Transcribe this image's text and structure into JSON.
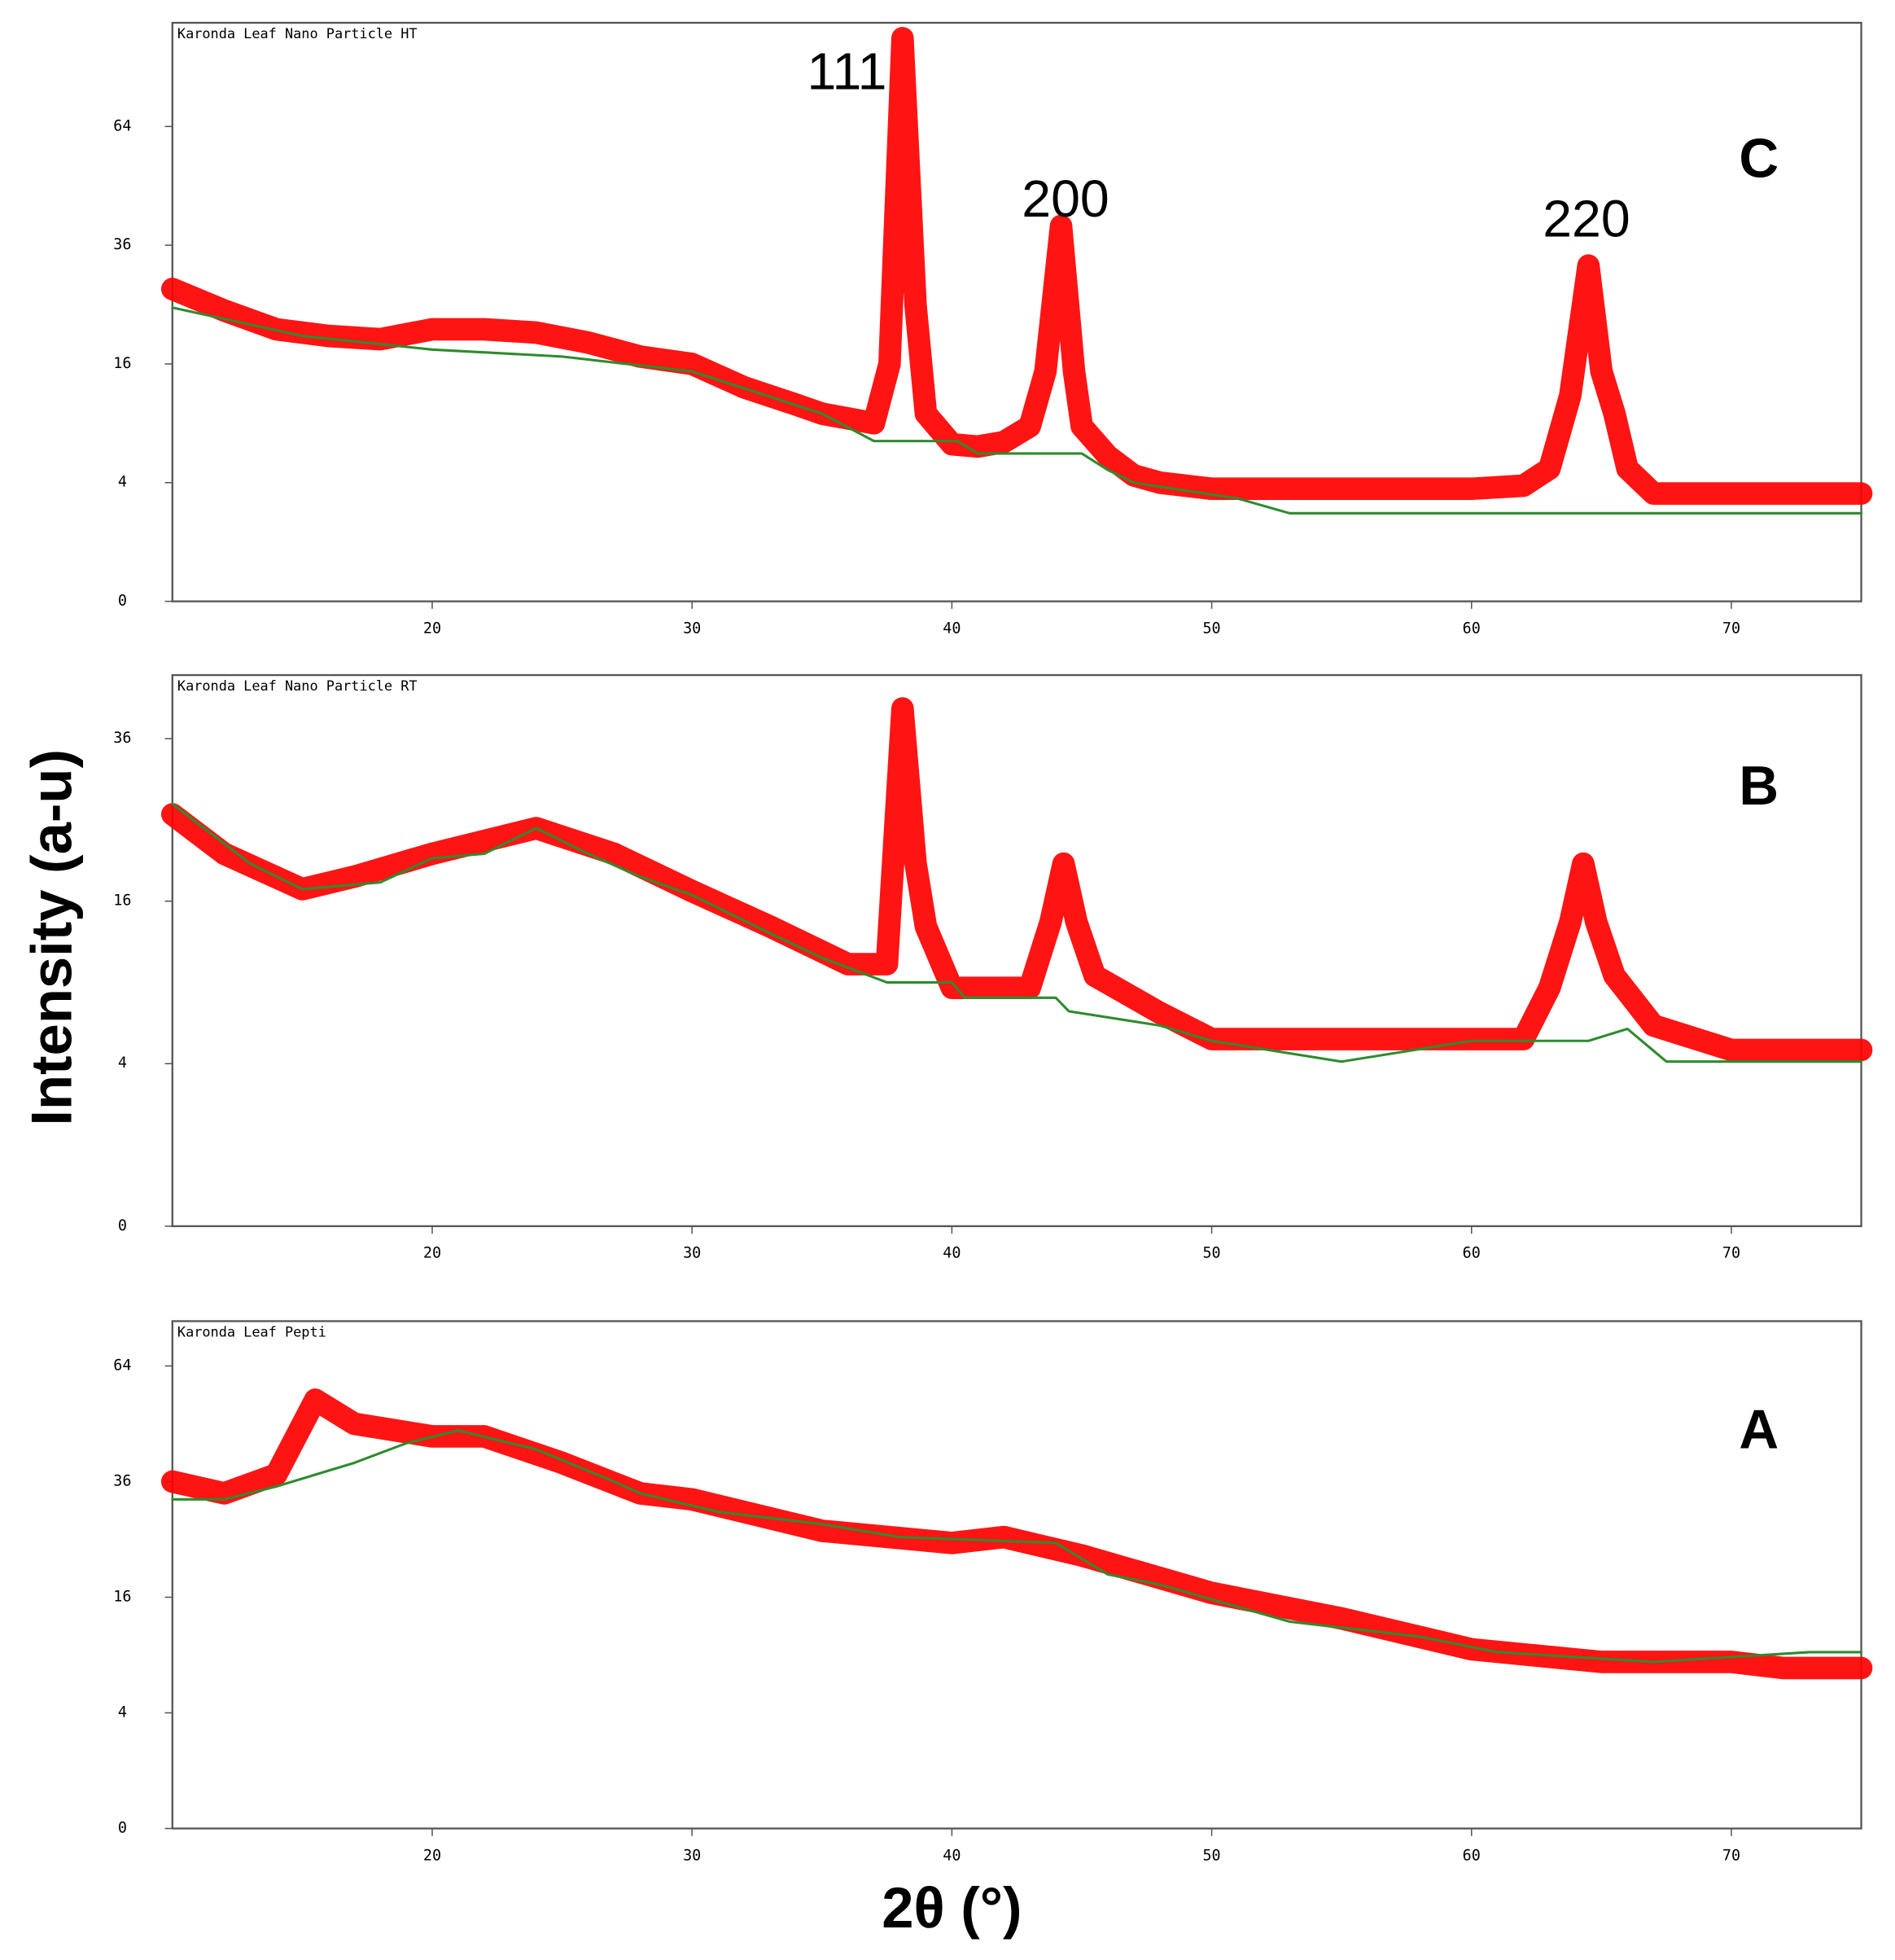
{
  "y_label": "Intensity  (a-u)",
  "x_label": "2θ (°)",
  "chart_data": [
    {
      "type": "line",
      "title": "Karonda Leaf Nano Particle HT",
      "panel_label": "C",
      "yscale": "sqrt",
      "xlim": [
        10,
        75
      ],
      "xticks": [
        20,
        30,
        40,
        50,
        60,
        70
      ],
      "ylim": [
        0,
        95
      ],
      "yticks": [
        0,
        4,
        16,
        36,
        64
      ],
      "annotations": [
        "111",
        "200",
        "220"
      ],
      "series": [
        {
          "color": "#ff0000",
          "x": [
            10,
            12,
            14,
            16,
            18,
            20,
            22,
            24,
            26,
            28,
            30,
            32,
            34,
            35,
            36,
            37,
            37.6,
            38.1,
            38.6,
            39,
            40,
            41,
            42,
            43,
            43.6,
            44.2,
            44.7,
            45,
            46,
            47,
            48,
            50,
            52,
            54,
            56,
            58,
            60,
            62,
            63,
            63.8,
            64.5,
            65,
            65.5,
            66,
            67,
            69,
            71,
            73,
            75
          ],
          "values": [
            27.7,
            24,
            21,
            20,
            19.5,
            21,
            21,
            20.5,
            19,
            17,
            16,
            13,
            11,
            10,
            9.5,
            9,
            16,
            90,
            25,
            10,
            7,
            6.8,
            7.2,
            8.7,
            15,
            40,
            15,
            8.7,
            6,
            4.5,
            4,
            3.6,
            3.6,
            3.6,
            3.6,
            3.6,
            3.6,
            3.8,
            5,
            12,
            32,
            15,
            10,
            5,
            3.3,
            3.3,
            3.3,
            3.3,
            3.3
          ]
        },
        {
          "color": "#2e8b2e",
          "x": [
            10,
            15,
            20,
            25,
            30,
            35,
            37,
            40.2,
            41,
            45,
            46,
            47,
            51,
            53,
            75
          ],
          "values": [
            24.5,
            20,
            18,
            17,
            15,
            10,
            7.3,
            7.3,
            6.2,
            6.2,
            4.9,
            4,
            3,
            2.2,
            2.2
          ]
        }
      ]
    },
    {
      "type": "line",
      "title": "Karonda Leaf Nano Particle RT",
      "panel_label": "B",
      "yscale": "sqrt",
      "xlim": [
        10,
        75
      ],
      "xticks": [
        20,
        30,
        40,
        50,
        60,
        70
      ],
      "ylim": [
        0,
        46
      ],
      "yticks": [
        0,
        4,
        16,
        36
      ],
      "series": [
        {
          "color": "#ff0000",
          "x": [
            10,
            12,
            15,
            17,
            20,
            24,
            27,
            30,
            33,
            36,
            37.5,
            38.1,
            38.6,
            39,
            40,
            43,
            43.8,
            44.3,
            44.8,
            45.5,
            48,
            50,
            54,
            58,
            62,
            63,
            63.8,
            64.3,
            64.8,
            65.5,
            67,
            70,
            75
          ],
          "values": [
            25.7,
            21,
            17.2,
            18.5,
            21,
            24,
            21,
            17,
            13.6,
            10.4,
            10.4,
            40.6,
            20,
            13.6,
            8.6,
            8.6,
            14,
            19.9,
            14,
            9.5,
            6.9,
            5.3,
            5.3,
            5.3,
            5.3,
            8.6,
            14,
            19.9,
            14,
            9.5,
            6.1,
            4.7,
            4.7
          ]
        },
        {
          "color": "#2e8b2e",
          "x": [
            10,
            13,
            15,
            18,
            20,
            22,
            24,
            26,
            28,
            30,
            33,
            35,
            37.5,
            40,
            40.5,
            44,
            44.5,
            48,
            50,
            55,
            60,
            64.5,
            66,
            67.5,
            75
          ],
          "values": [
            27,
            19.9,
            17.2,
            17.9,
            20.5,
            21,
            24,
            21,
            18.5,
            16.6,
            13,
            10.9,
            9,
            9,
            7.9,
            7.9,
            7,
            6.1,
            5.2,
            4.1,
            5.2,
            5.2,
            5.9,
            4.1,
            4.1
          ]
        }
      ]
    },
    {
      "type": "line",
      "title": "Karonda Leaf Pepti",
      "panel_label": "A",
      "yscale": "sqrt",
      "xlim": [
        10,
        75
      ],
      "xticks": [
        20,
        30,
        40,
        50,
        60,
        70
      ],
      "ylim": [
        0,
        77
      ],
      "yticks": [
        0,
        4,
        16,
        36,
        64
      ],
      "series": [
        {
          "color": "#ff0000",
          "x": [
            10,
            12,
            14,
            15.5,
            17,
            20,
            22,
            25,
            28,
            30,
            35,
            40,
            42,
            45,
            50,
            55,
            60,
            65,
            70,
            72,
            75
          ],
          "values": [
            36,
            33.6,
            37.5,
            55,
            49,
            46,
            46,
            40,
            33.6,
            32.4,
            26.5,
            24.4,
            25.4,
            22.3,
            16.6,
            13.2,
            9.6,
            8.3,
            8.3,
            7.7,
            7.7
          ]
        },
        {
          "color": "#2e8b2e",
          "x": [
            10,
            12,
            14,
            17,
            19,
            21,
            24,
            27,
            28,
            31,
            35,
            38,
            44,
            46,
            48,
            50,
            53,
            58,
            61,
            67,
            73,
            75
          ],
          "values": [
            32.4,
            32.4,
            35,
            40,
            44.4,
            47.4,
            43,
            36,
            33.6,
            30,
            27.7,
            25.4,
            24.4,
            19.3,
            17.8,
            15.7,
            12.8,
            11,
            9.3,
            8.3,
            9.3,
            9.3
          ]
        }
      ]
    }
  ]
}
